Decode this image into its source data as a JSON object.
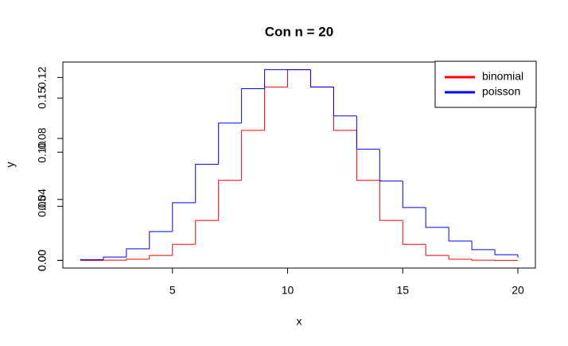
{
  "chart_data": {
    "type": "step",
    "title": "Con n = 20",
    "x_label": "x",
    "y_label": "y",
    "x": [
      1,
      2,
      3,
      4,
      5,
      6,
      7,
      8,
      9,
      10,
      11,
      12,
      13,
      14,
      15,
      16,
      17,
      18,
      19,
      20
    ],
    "series": [
      {
        "name": "binomial",
        "color": "#ff0000",
        "axis": "y",
        "values": [
          2e-05,
          0.00018,
          0.00109,
          0.00462,
          0.01479,
          0.03696,
          0.07393,
          0.12013,
          0.16018,
          0.1762,
          0.16018,
          0.12013,
          0.07393,
          0.03696,
          0.01479,
          0.00462,
          0.00109,
          0.00018,
          2e-05,
          0
        ]
      },
      {
        "name": "poisson",
        "color": "#0000ff",
        "axis": "y2",
        "values": [
          0.00045,
          0.00227,
          0.00757,
          0.01892,
          0.03783,
          0.06306,
          0.09008,
          0.1126,
          0.12511,
          0.12511,
          0.11374,
          0.09478,
          0.07291,
          0.05208,
          0.03472,
          0.0217,
          0.01276,
          0.00709,
          0.00373,
          0.00187
        ]
      }
    ],
    "xlim": [
      0.24,
      20.76
    ],
    "xticks": [
      5,
      10,
      15,
      20
    ],
    "ylim": [
      -0.00705,
      0.18325
    ],
    "yticks": [
      {
        "value": 0,
        "label": "0.00"
      },
      {
        "value": 0.05,
        "label": "0.05"
      },
      {
        "value": 0.1,
        "label": "0.10"
      },
      {
        "value": 0.15,
        "label": "0.15"
      }
    ],
    "y2lim": [
      -0.005,
      0.1301
    ],
    "y2ticks": [
      {
        "value": 0,
        "label": "0.00"
      },
      {
        "value": 0.04,
        "label": "0.04"
      },
      {
        "value": 0.08,
        "label": "0.08"
      },
      {
        "value": 0.12,
        "label": "0.12"
      }
    ],
    "legend": "top-right"
  }
}
